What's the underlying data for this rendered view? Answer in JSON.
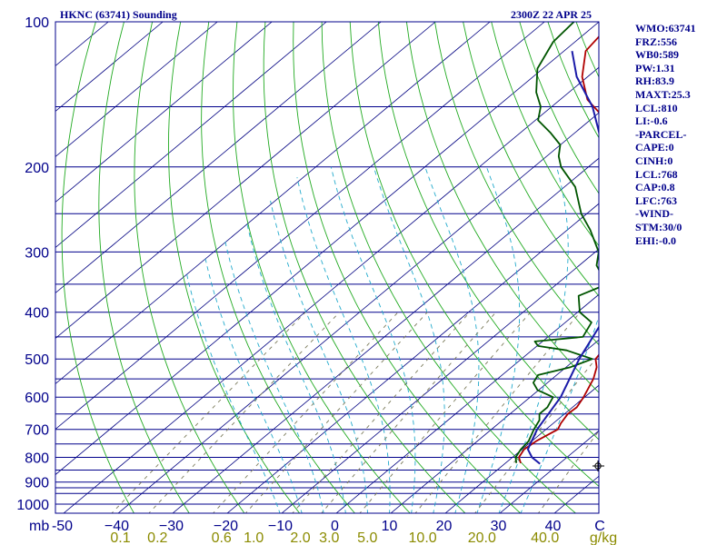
{
  "header": {
    "station": "HKNC (63741) Sounding",
    "time": "2300Z 22 APR 25"
  },
  "stats": [
    "WMO:63741",
    "FRZ:556",
    "WB0:589",
    "PW:1.31",
    "RH:83.9",
    "MAXT:25.3",
    "LCL:810",
    "LI:-0.6",
    "-PARCEL-",
    "CAPE:0",
    "CINH:0",
    "LCL:768",
    "CAP:0.8",
    "LFC:763",
    "-WIND-",
    "STM:30/0",
    "EHI:-0.0"
  ],
  "colors": {
    "frame": "#00008b",
    "isobar": "#00008b",
    "isotherm": "#000080",
    "dry_adiabat": "#22aa22",
    "moist_adiabat": "#22aacc",
    "mixing_ratio": "#7a7a5a",
    "temperature": "#b00000",
    "dewpoint": "#005500",
    "parcel": "#1a1aa8",
    "mixing_ratio_label": "#8b8b00"
  },
  "chart_data": {
    "type": "line",
    "subtype": "skew-t log-p sounding",
    "title": "HKNC (63741) Sounding",
    "subtitle": "2300Z 22 APR 25",
    "xlabel": "C",
    "ylabel": "mb",
    "y_scale": "log",
    "ylim": [
      1050,
      100
    ],
    "xlim": [
      -50,
      50
    ],
    "pressure_ticks": [
      100,
      200,
      300,
      400,
      500,
      600,
      700,
      800,
      900,
      1000
    ],
    "pressure_tick_labels": [
      "100",
      "200",
      "300",
      "400",
      "500",
      "600",
      "700",
      "800",
      "900",
      "1000"
    ],
    "temp_ticks": [
      -50,
      -40,
      -30,
      -20,
      -10,
      0,
      10,
      20,
      30,
      40
    ],
    "temp_tick_labels": [
      "-50",
      "−40",
      "−30",
      "−20",
      "−10",
      "0",
      "10",
      "20",
      "30",
      "40"
    ],
    "mixing_ratio_ticks": [
      0.1,
      0.2,
      0.6,
      1.0,
      2.0,
      3.0,
      5.0,
      10.0,
      20.0,
      40.0
    ],
    "mixing_ratio_tick_labels": [
      "0.1",
      "0.2",
      "0.6",
      "1.0",
      "2.0",
      "3.0",
      "5.0",
      "10.0",
      "20.0",
      "40.0"
    ],
    "mixing_ratio_unit": "g/kg",
    "isobars": [
      100,
      150,
      200,
      250,
      300,
      350,
      400,
      450,
      500,
      550,
      600,
      650,
      700,
      750,
      800,
      850,
      900,
      925,
      950,
      1000
    ],
    "series": [
      {
        "role": "temperature",
        "pressure": [
          822,
          800,
          770,
          740,
          700,
          680,
          650,
          630,
          600,
          550,
          520,
          500,
          480,
          450,
          420,
          400,
          380,
          350,
          300,
          270,
          250,
          220,
          200,
          180,
          160,
          145,
          130,
          115,
          105,
          100
        ],
        "temperature": [
          22.8,
          21.2,
          20.4,
          20.8,
          22.2,
          21.4,
          20.6,
          20.8,
          19.8,
          17.6,
          15.6,
          13.6,
          13.0,
          9.8,
          7.0,
          5.6,
          4.0,
          0.4,
          -6.6,
          -10.8,
          -15.0,
          -20.5,
          -23.5,
          -28.0,
          -37.0,
          -45.0,
          -51.0,
          -56.0,
          -57.0,
          -59.0
        ]
      },
      {
        "role": "dewpoint",
        "pressure": [
          822,
          800,
          770,
          740,
          700,
          670,
          650,
          630,
          600,
          580,
          560,
          540,
          520,
          500,
          480,
          470,
          460,
          450,
          420,
          400,
          370,
          350,
          320,
          300,
          270,
          250,
          220,
          200,
          190,
          180,
          170,
          160,
          150,
          140,
          125,
          110,
          100
        ],
        "temperature": [
          22.0,
          20.6,
          19.8,
          19.4,
          17.8,
          16.8,
          15.4,
          15.4,
          14.2,
          9.8,
          7.4,
          6.6,
          10.8,
          13.0,
          6.4,
          0.2,
          -1.4,
          6.4,
          4.8,
          0.4,
          -3.4,
          -0.8,
          -6.8,
          -9.4,
          -15.8,
          -21.0,
          -28.0,
          -35.0,
          -37.8,
          -40.0,
          -44.4,
          -49.5,
          -52.0,
          -56.0,
          -61.0,
          -64.0,
          -64.6
        ]
      },
      {
        "role": "parcel",
        "pressure": [
          825,
          800,
          770,
          700,
          600,
          500,
          400,
          350,
          300,
          250,
          200,
          170,
          150,
          130,
          115
        ],
        "temperature": [
          26.5,
          23.6,
          21.1,
          18.4,
          15.6,
          10.6,
          5.6,
          1.7,
          -5.4,
          -13.2,
          -26.5,
          -35.5,
          -42.5,
          -52.0,
          -58.5
        ]
      }
    ]
  }
}
